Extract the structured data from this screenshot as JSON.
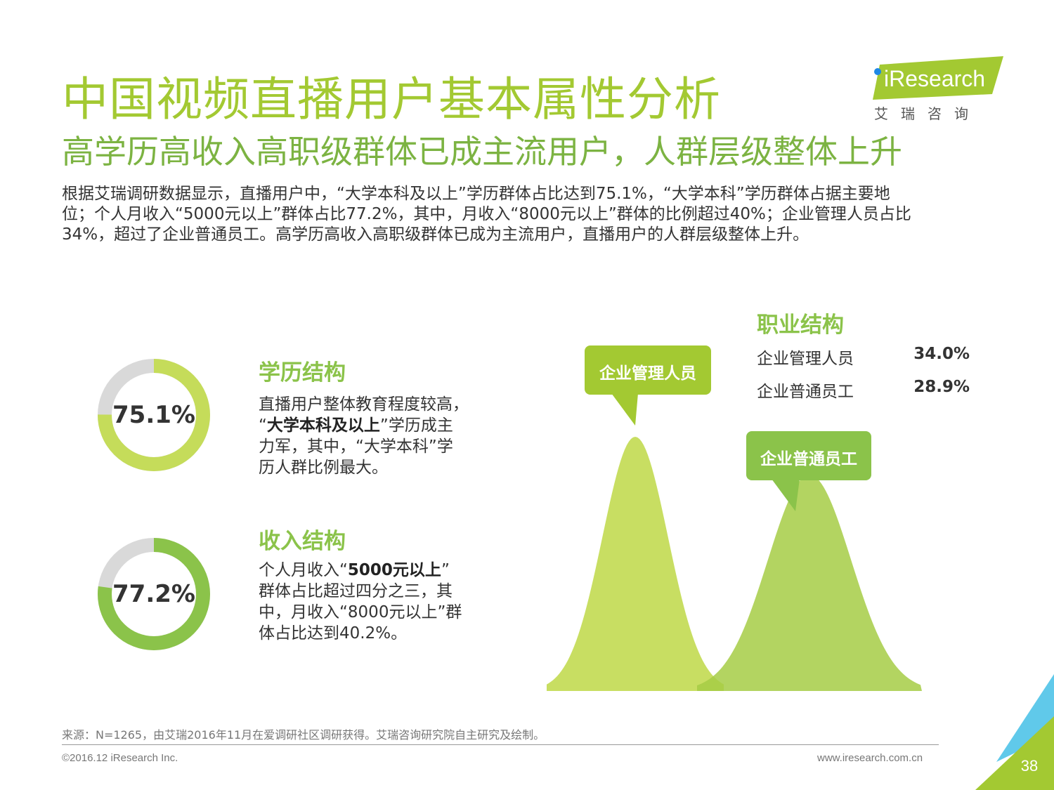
{
  "header": {
    "title": "中国视频直播用户基本属性分析",
    "subtitle": "高学历高收入高职级群体已成主流用户，人群层级整体上升"
  },
  "logo": {
    "text": "iResearch",
    "cn": "艾瑞咨询"
  },
  "description": [
    "根据艾瑞调研数据显示，直播用户中，“大学本科及以上”学历群体占比达到75.1%，“大学本科”学历群体占据主要地",
    "位；个人月收入“5000元以上”群体占比77.2%，其中，月收入“8000元以上”群体的比例超过40%；企业管理人员占比",
    "34%，超过了企业普通员工。高学历高收入高职级群体已成为主流用户，直播用户的人群层级整体上升。"
  ],
  "education": {
    "percent_label": "75.1%",
    "value": 75.1,
    "title": "学历结构",
    "lines": [
      {
        "pre": "直播用户整体教育程度较高，",
        "bold": "",
        "post": ""
      },
      {
        "pre": "“",
        "bold": "大学本科及以上",
        "post": "”学历成主"
      },
      {
        "pre": "力军，其中，“大学本科”学",
        "bold": "",
        "post": ""
      },
      {
        "pre": "历人群比例最大。",
        "bold": "",
        "post": ""
      }
    ]
  },
  "income": {
    "percent_label": "77.2%",
    "value": 77.2,
    "title": "收入结构",
    "lines": [
      {
        "pre": "个人月收入“",
        "bold": "5000元以上",
        "post": "”"
      },
      {
        "pre": "群体占比超过四分之三，其",
        "bold": "",
        "post": ""
      },
      {
        "pre": "中，月收入“8000元以上”群",
        "bold": "",
        "post": ""
      },
      {
        "pre": "体占比达到40.2%。",
        "bold": "",
        "post": ""
      }
    ]
  },
  "occupation": {
    "title": "职业结构",
    "items": [
      {
        "name": "企业管理人员",
        "value_label": "34.0%"
      },
      {
        "name": "企业普通员工",
        "value_label": "28.9%"
      }
    ]
  },
  "chart_data": {
    "type": "area",
    "title": "",
    "series": [
      {
        "name": "企业管理人员",
        "value": 34.0
      },
      {
        "name": "企业普通员工",
        "value": 28.9
      }
    ]
  },
  "colors": {
    "green_light": "#c5dc5a",
    "green_mid": "#a6cd45",
    "green_dark": "#8bc34a",
    "track": "#d9d9d9",
    "blue": "#4fc3e8"
  },
  "footer": {
    "source": "来源：N=1265，由艾瑞2016年11月在爱调研社区调研获得。艾瑞咨询研究院自主研究及绘制。",
    "copyright": "©2016.12 iResearch Inc.",
    "website": "www.iresearch.com.cn",
    "page": "38"
  }
}
